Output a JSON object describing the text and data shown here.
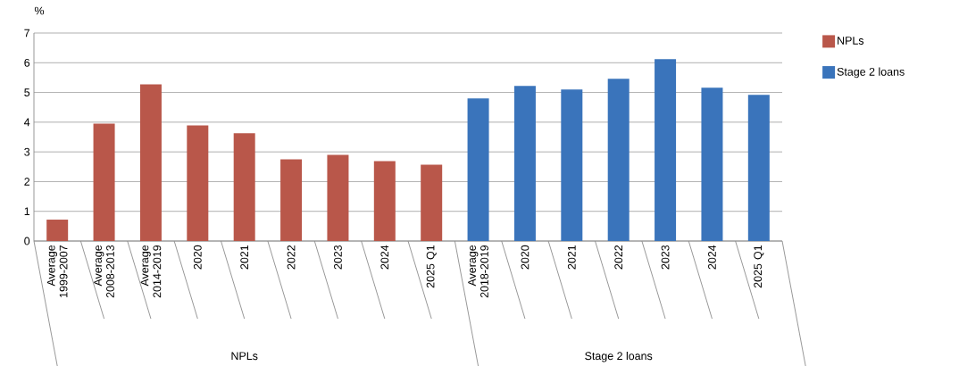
{
  "chart_data": {
    "type": "bar",
    "ylabel": "%",
    "categories": [
      "Average 1999-2007",
      "Average 2008-2013",
      "Average 2014-2019",
      "2020",
      "2021",
      "2022",
      "2023",
      "2024",
      "2025 Q1",
      "Average 2018-2019",
      "2020",
      "2021",
      "2022",
      "2023",
      "2024",
      "2025 Q1"
    ],
    "series": [
      {
        "name": "NPLs",
        "color": "#b9574a",
        "values": [
          0.72,
          3.95,
          5.27,
          3.89,
          3.63,
          2.75,
          2.9,
          2.69,
          2.57,
          null,
          null,
          null,
          null,
          null,
          null,
          null
        ]
      },
      {
        "name": "Stage 2 loans",
        "color": "#3a74bb",
        "values": [
          null,
          null,
          null,
          null,
          null,
          null,
          null,
          null,
          null,
          4.8,
          5.22,
          5.1,
          5.46,
          6.12,
          5.16,
          4.92
        ]
      }
    ],
    "ylim": [
      0,
      7
    ],
    "yticks": [
      0,
      1,
      2,
      3,
      4,
      5,
      6,
      7
    ],
    "grid": "y",
    "legend": "top right",
    "annotations": [
      "NPLs",
      "Stage 2 loans"
    ]
  }
}
